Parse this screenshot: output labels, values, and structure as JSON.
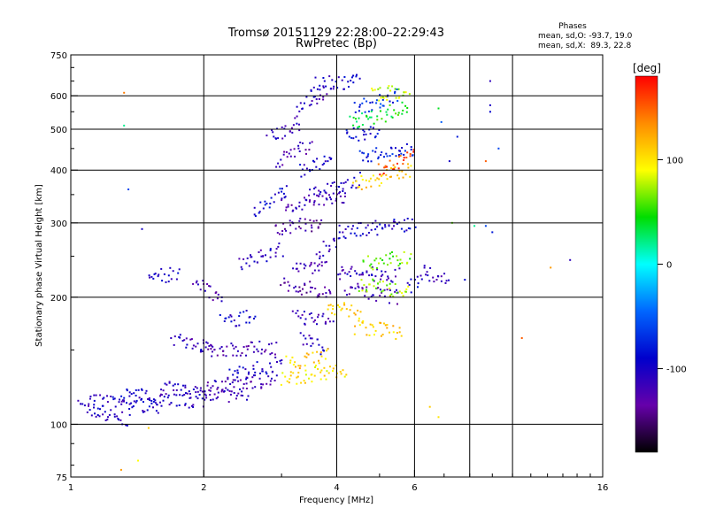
{
  "chart_data": {
    "type": "scatter",
    "title": "Tromsø 20151129 22:28:00–22:29:43",
    "subtitle": "RwPretec (Bp)",
    "xlabel": "Frequency [MHz]",
    "ylabel": "Stationary phase Virtual Height [km]",
    "x_scale": "log2",
    "y_scale": "log",
    "xlim": [
      1,
      16
    ],
    "ylim": [
      75,
      750
    ],
    "x_ticks": [
      1,
      2,
      4,
      6,
      16
    ],
    "x_ticklabels": [
      "1",
      "2",
      "4",
      "6",
      "16"
    ],
    "x_gridlines": [
      2,
      4,
      6,
      8,
      10
    ],
    "y_ticks": [
      75,
      100,
      200,
      300,
      400,
      500,
      600,
      750
    ],
    "y_ticklabels": [
      "75",
      "100",
      "200",
      "300",
      "400",
      "500",
      "600",
      "750"
    ],
    "y_gridlines": [
      100,
      200,
      300,
      400,
      500,
      600
    ],
    "grid": true,
    "stats": {
      "heading": "Phases",
      "line_o": "mean, sd,O: -93.7, 19.0",
      "line_x": "mean, sd,X:  89.3, 22.8"
    },
    "colorbar": {
      "label": "[deg]",
      "range": [
        -180,
        180
      ],
      "ticks": [
        100,
        0,
        -100
      ],
      "ticklabels": [
        "100",
        "0",
        "-100"
      ],
      "colors": [
        "#ff0000",
        "#ff8c00",
        "#ffff00",
        "#00dd00",
        "#00ffff",
        "#0066ff",
        "#0000cc",
        "#6600aa",
        "#000000"
      ]
    },
    "series": [
      {
        "comment": "traces: [freq_start, freq_end, height_start, height_end, phase_deg]",
        "traces": [
          [
            1.05,
            1.35,
            110,
            102,
            -110
          ],
          [
            1.1,
            1.6,
            114,
            110,
            -100
          ],
          [
            1.3,
            2.0,
            118,
            113,
            -105
          ],
          [
            1.6,
            2.5,
            122,
            116,
            -110
          ],
          [
            2.0,
            2.9,
            122,
            128,
            -120
          ],
          [
            2.3,
            3.0,
            130,
            140,
            -100
          ],
          [
            2.0,
            2.9,
            150,
            152,
            -120
          ],
          [
            1.7,
            2.1,
            160,
            150,
            -110
          ],
          [
            2.2,
            2.6,
            175,
            180,
            -100
          ],
          [
            1.5,
            1.75,
            226,
            226,
            -100
          ],
          [
            1.9,
            2.2,
            215,
            200,
            -120
          ],
          [
            2.4,
            3.0,
            240,
            260,
            -110
          ],
          [
            2.9,
            3.7,
            290,
            300,
            -130
          ],
          [
            2.6,
            3.1,
            320,
            360,
            -90
          ],
          [
            3.0,
            4.2,
            330,
            345,
            -120
          ],
          [
            3.5,
            4.5,
            350,
            380,
            -110
          ],
          [
            2.9,
            3.5,
            420,
            460,
            -120
          ],
          [
            3.3,
            3.9,
            400,
            420,
            -100
          ],
          [
            2.8,
            3.3,
            480,
            500,
            -110
          ],
          [
            3.2,
            3.8,
            550,
            620,
            -110
          ],
          [
            3.5,
            4.5,
            640,
            650,
            -100
          ],
          [
            3.0,
            3.9,
            215,
            205,
            -130
          ],
          [
            3.2,
            3.8,
            240,
            235,
            -120
          ],
          [
            3.6,
            4.0,
            255,
            270,
            -110
          ],
          [
            3.2,
            3.9,
            180,
            175,
            -120
          ],
          [
            3.3,
            3.8,
            160,
            150,
            -110
          ],
          [
            4.0,
            5.5,
            230,
            225,
            -110
          ],
          [
            4.2,
            5.5,
            210,
            200,
            -120
          ],
          [
            4.0,
            6.0,
            285,
            300,
            -100
          ],
          [
            4.4,
            5.5,
            560,
            600,
            -70
          ],
          [
            4.2,
            5.0,
            480,
            500,
            -90
          ],
          [
            4.5,
            6.0,
            430,
            450,
            -80
          ],
          [
            3.0,
            4.2,
            128,
            135,
            100
          ],
          [
            3.1,
            3.8,
            140,
            145,
            110
          ],
          [
            3.8,
            4.5,
            190,
            185,
            110
          ],
          [
            4.4,
            5.6,
            170,
            165,
            110
          ],
          [
            4.6,
            5.9,
            240,
            250,
            60
          ],
          [
            4.5,
            5.8,
            215,
            205,
            70
          ],
          [
            4.4,
            5.9,
            370,
            400,
            110
          ],
          [
            5.0,
            6.0,
            400,
            430,
            160
          ],
          [
            4.3,
            5.8,
            520,
            560,
            40
          ],
          [
            4.8,
            5.8,
            600,
            620,
            80
          ],
          [
            5.8,
            6.3,
            210,
            230,
            -100
          ],
          [
            6.3,
            7.2,
            230,
            220,
            -110
          ]
        ]
      },
      {
        "comment": "isolated points: [freq, height, phase_deg]",
        "points": [
          [
            1.32,
            610,
            140
          ],
          [
            1.32,
            510,
            20
          ],
          [
            1.35,
            360,
            -60
          ],
          [
            1.45,
            290,
            -100
          ],
          [
            1.42,
            82,
            90
          ],
          [
            1.5,
            98,
            110
          ],
          [
            1.3,
            78,
            130
          ],
          [
            7.3,
            300,
            60
          ],
          [
            8.2,
            295,
            20
          ],
          [
            8.7,
            295,
            -60
          ],
          [
            9.0,
            285,
            -80
          ],
          [
            8.9,
            650,
            -110
          ],
          [
            8.9,
            570,
            -100
          ],
          [
            8.9,
            550,
            -90
          ],
          [
            7.5,
            480,
            -80
          ],
          [
            7.2,
            420,
            -100
          ],
          [
            8.7,
            420,
            150
          ],
          [
            9.3,
            450,
            -60
          ],
          [
            6.8,
            560,
            40
          ],
          [
            6.9,
            520,
            -50
          ],
          [
            7.8,
            220,
            -90
          ],
          [
            10.5,
            160,
            150
          ],
          [
            12.2,
            235,
            130
          ],
          [
            13.5,
            245,
            -110
          ],
          [
            6.5,
            110,
            110
          ],
          [
            6.8,
            104,
            100
          ]
        ]
      }
    ]
  }
}
